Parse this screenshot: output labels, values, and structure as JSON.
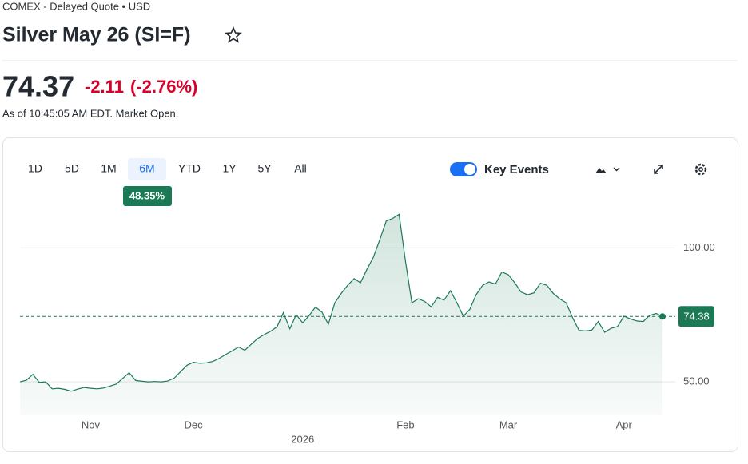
{
  "header": {
    "exchange": "COMEX - Delayed Quote • USD",
    "title": "Silver May 26 (SI=F)",
    "price": "74.37",
    "change": "-2.11",
    "change_pct": "(-2.76%)",
    "as_of": "As of 10:45:05 AM EDT. Market Open."
  },
  "controls": {
    "ranges": [
      "1D",
      "5D",
      "1M",
      "6M",
      "YTD",
      "1Y",
      "5Y",
      "All"
    ],
    "selected_range": "6M",
    "range_change": "48.35%",
    "key_events": "Key Events"
  },
  "chart_data": {
    "type": "area",
    "color": "#1b7a55",
    "categories": [
      null,
      null,
      null,
      null,
      null,
      null,
      null,
      null,
      null,
      null,
      null,
      "Nov",
      null,
      null,
      null,
      null,
      null,
      null,
      null,
      null,
      null,
      null,
      null,
      null,
      null,
      null,
      null,
      "Dec",
      null,
      null,
      null,
      null,
      null,
      null,
      null,
      null,
      null,
      null,
      null,
      null,
      null,
      null,
      null,
      null,
      "2026",
      null,
      null,
      null,
      null,
      null,
      null,
      null,
      null,
      null,
      null,
      null,
      null,
      null,
      null,
      null,
      "Feb",
      null,
      null,
      null,
      null,
      null,
      null,
      null,
      null,
      null,
      null,
      null,
      null,
      null,
      null,
      null,
      "Mar",
      null,
      null,
      null,
      null,
      null,
      null,
      null,
      null,
      null,
      null,
      null,
      null,
      null,
      null,
      null,
      null,
      null,
      "Apr",
      null,
      null,
      null,
      null,
      null,
      null
    ],
    "series": [
      {
        "name": "SI=F",
        "values": [
          50.0,
          50.6,
          52.8,
          49.8,
          50.0,
          47.4,
          47.6,
          47.2,
          46.5,
          47.3,
          47.9,
          47.6,
          47.4,
          47.7,
          48.4,
          49.2,
          51.3,
          53.4,
          50.5,
          50.2,
          50.0,
          50.1,
          50.0,
          50.3,
          51.4,
          53.8,
          56.2,
          57.3,
          56.9,
          57.1,
          57.6,
          58.7,
          60.2,
          61.5,
          63.0,
          61.8,
          64.0,
          66.2,
          67.6,
          68.9,
          70.5,
          75.8,
          69.8,
          75.1,
          72.0,
          74.7,
          77.9,
          76.0,
          71.5,
          79.5,
          83.0,
          86.0,
          88.5,
          87.0,
          92.0,
          96.5,
          103.0,
          110.0,
          111.0,
          112.5,
          95.0,
          79.5,
          81.0,
          80.0,
          78.0,
          81.5,
          80.5,
          84.0,
          79.5,
          74.5,
          77.0,
          82.5,
          86.0,
          87.3,
          86.5,
          91.0,
          90.0,
          87.0,
          83.5,
          82.5,
          83.2,
          86.8,
          86.0,
          83.0,
          81.0,
          79.5,
          74.0,
          69.2,
          69.0,
          69.3,
          72.5,
          68.5,
          70.0,
          70.6,
          74.5,
          73.5,
          72.7,
          72.5,
          74.8,
          75.5,
          74.38
        ]
      }
    ],
    "ylim": [
      37.5,
      118
    ],
    "yticks": [
      {
        "value": 50,
        "label": "50.00"
      },
      {
        "value": 100,
        "label": "100.00"
      }
    ],
    "grid": true
  }
}
